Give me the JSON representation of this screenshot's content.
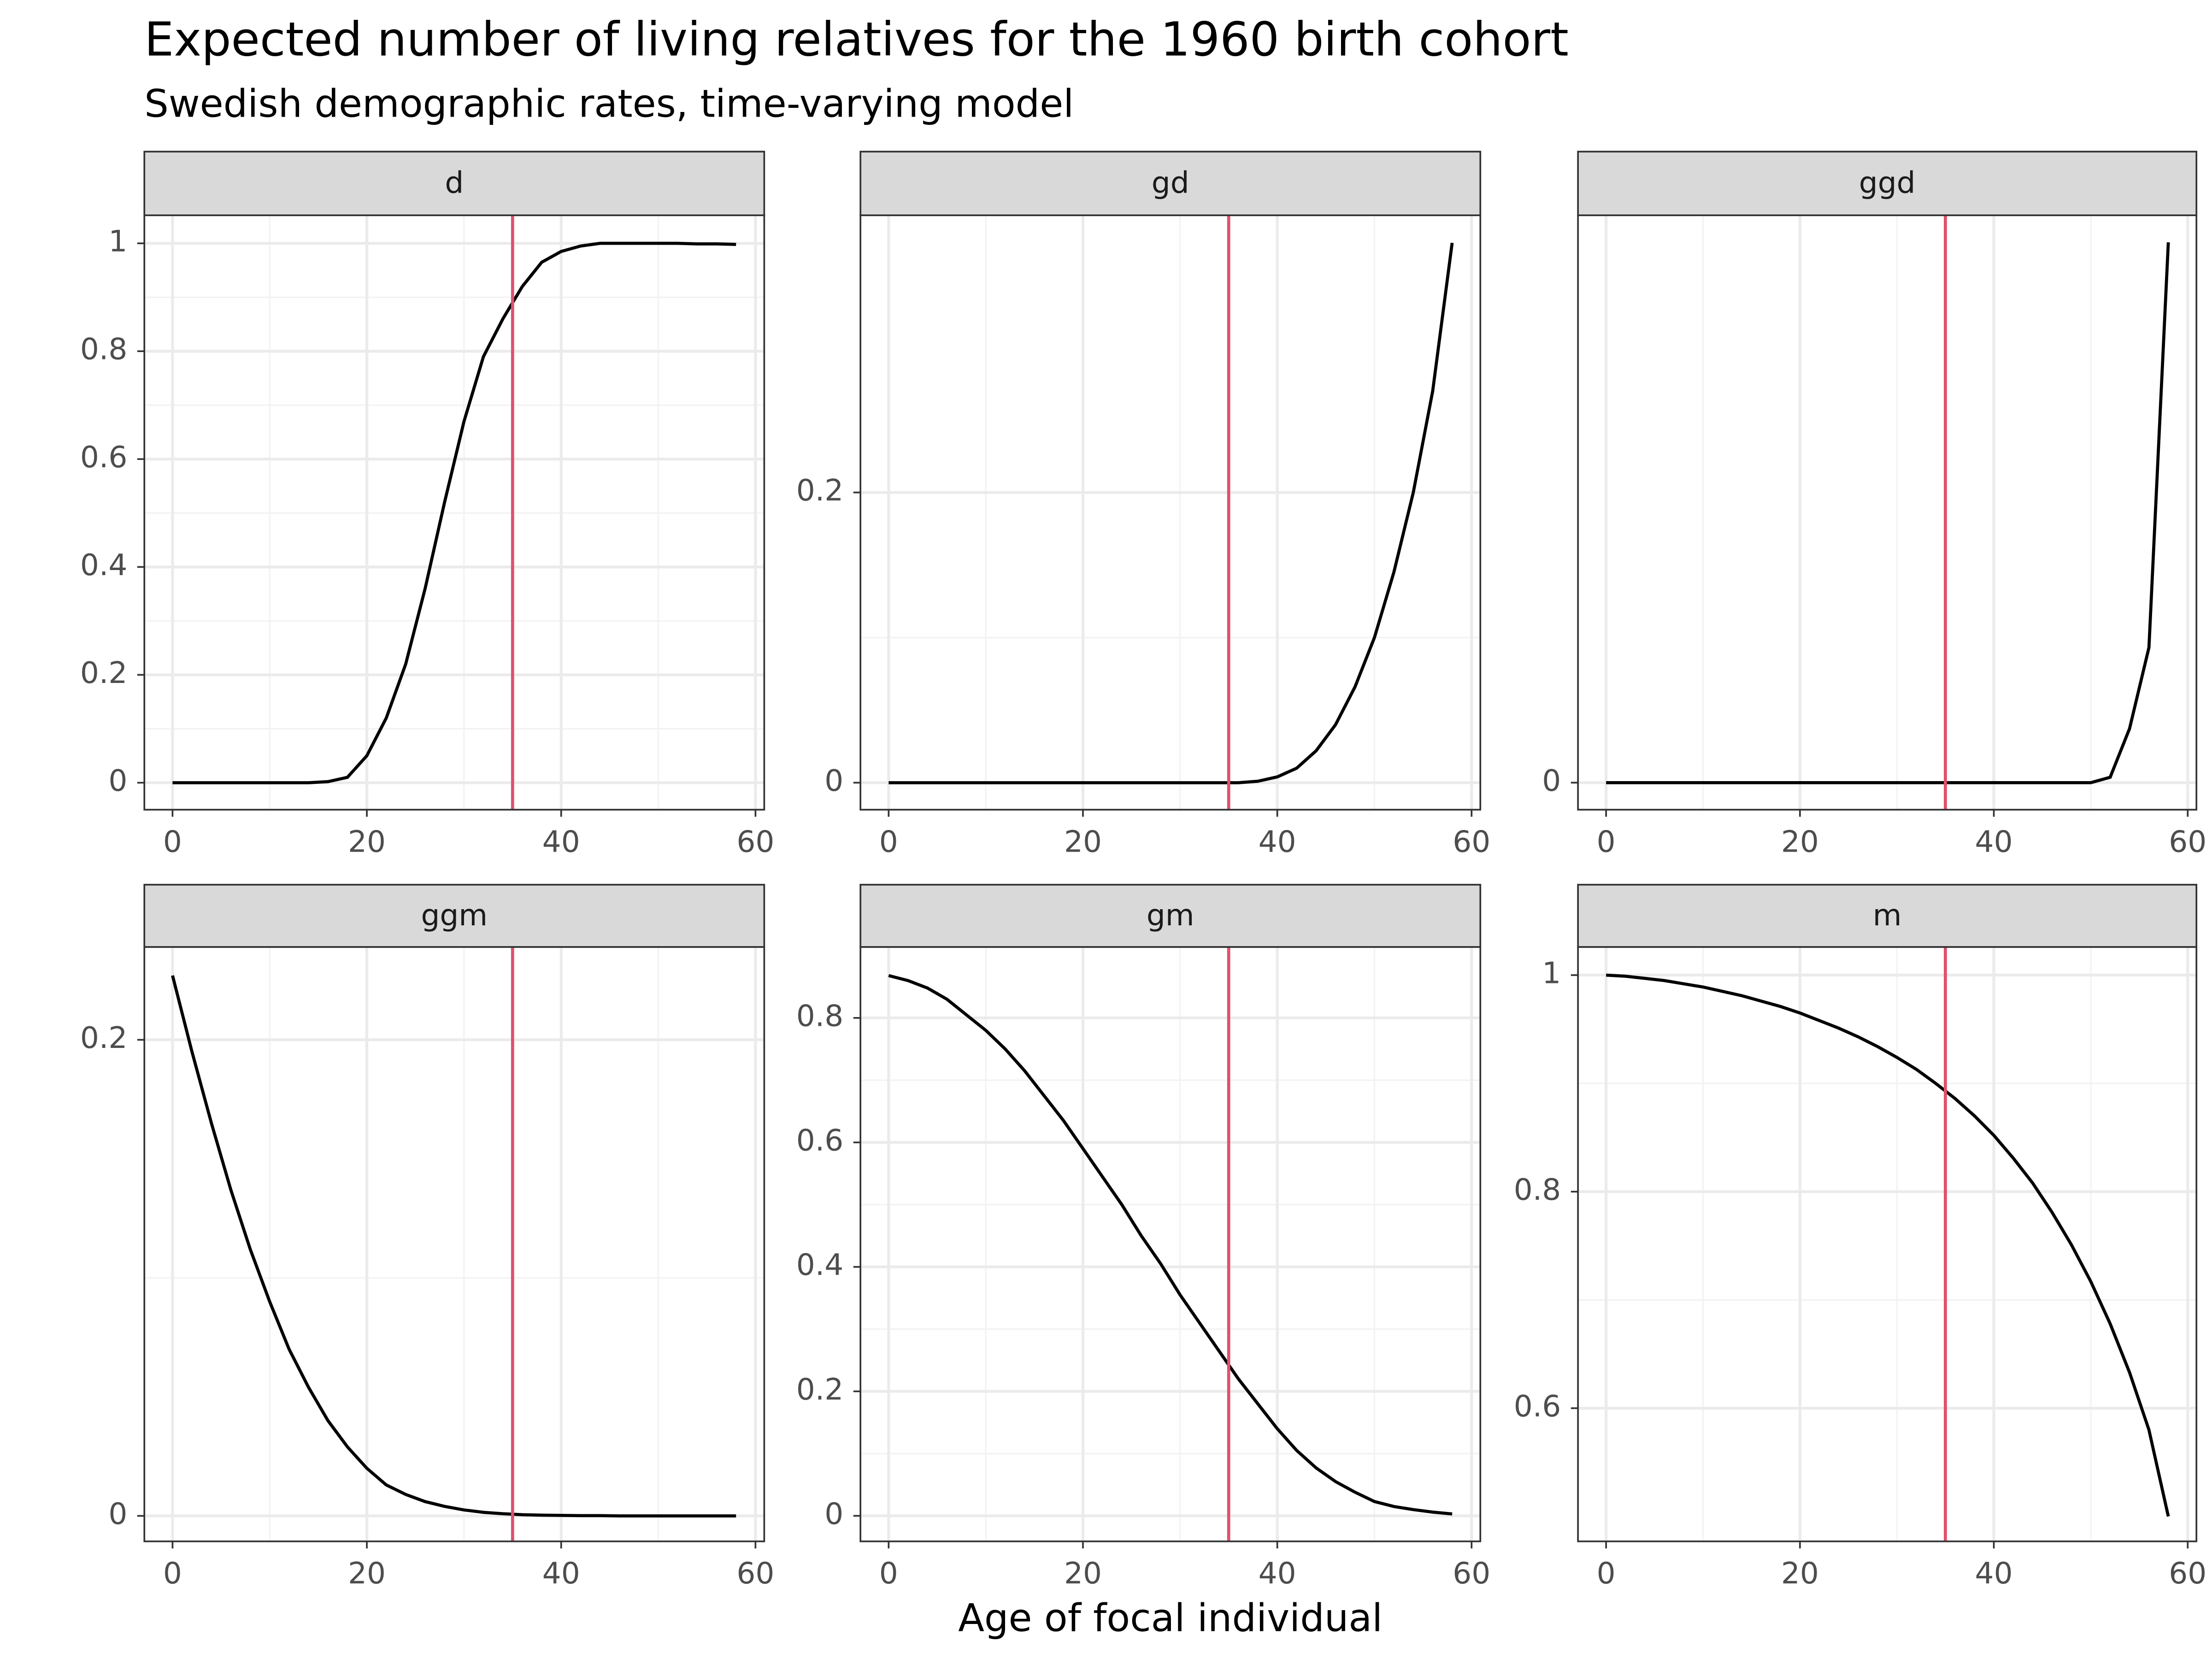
{
  "title": "Expected number of living relatives for the 1960 birth cohort",
  "subtitle": "Swedish demographic rates, time-varying model",
  "x_label": "Age of focal individual",
  "chart_data": [
    {
      "type": "line",
      "strip": "d",
      "color": "#000000",
      "vline": 35,
      "vline_color": "#e0506e",
      "grid": true,
      "x": [
        0,
        2,
        4,
        6,
        8,
        10,
        12,
        14,
        16,
        18,
        20,
        22,
        24,
        26,
        28,
        30,
        32,
        34,
        36,
        38,
        40,
        42,
        44,
        46,
        48,
        50,
        52,
        54,
        56,
        58
      ],
      "values": [
        0,
        0,
        0,
        0,
        0,
        0,
        0,
        0,
        0.002,
        0.01,
        0.05,
        0.12,
        0.22,
        0.36,
        0.52,
        0.67,
        0.79,
        0.86,
        0.92,
        0.965,
        0.985,
        0.995,
        1,
        1,
        1,
        1,
        1,
        0.999,
        0.999,
        0.998
      ],
      "xlim": [
        -2.9,
        60.9
      ],
      "ylim": [
        -0.05,
        1.052
      ],
      "xticks": [
        0,
        20,
        40,
        60
      ],
      "yticks": [
        0,
        0.2,
        0.4,
        0.6,
        0.8,
        1
      ]
    },
    {
      "type": "line",
      "strip": "gd",
      "color": "#000000",
      "vline": 35,
      "vline_color": "#e0506e",
      "grid": true,
      "x": [
        0,
        2,
        4,
        6,
        8,
        10,
        12,
        14,
        16,
        18,
        20,
        22,
        24,
        26,
        28,
        30,
        32,
        34,
        36,
        38,
        40,
        42,
        44,
        46,
        48,
        50,
        52,
        54,
        56,
        58
      ],
      "values": [
        0,
        0,
        0,
        0,
        0,
        0,
        0,
        0,
        0,
        0,
        0,
        0,
        0,
        0,
        0,
        0,
        0,
        0,
        0,
        0.001,
        0.004,
        0.01,
        0.022,
        0.04,
        0.066,
        0.1,
        0.145,
        0.2,
        0.27,
        0.372
      ],
      "xlim": [
        -2.9,
        60.9
      ],
      "ylim": [
        -0.0186,
        0.391
      ],
      "xticks": [
        0,
        20,
        40,
        60
      ],
      "yticks": [
        0,
        0.2
      ]
    },
    {
      "type": "line",
      "strip": "ggd",
      "color": "#000000",
      "vline": 35,
      "vline_color": "#e0506e",
      "grid": true,
      "x": [
        0,
        2,
        4,
        6,
        8,
        10,
        12,
        14,
        16,
        18,
        20,
        22,
        24,
        26,
        28,
        30,
        32,
        34,
        36,
        38,
        40,
        42,
        44,
        46,
        48,
        50,
        52,
        54,
        56,
        58
      ],
      "values": [
        0,
        0,
        0,
        0,
        0,
        0,
        0,
        0,
        0,
        0,
        0,
        0,
        0,
        0,
        0,
        0,
        0,
        0,
        0,
        0,
        0,
        0,
        0,
        0,
        0,
        0,
        2e-05,
        0.0002,
        0.0005,
        0.002
      ],
      "xlim": [
        -2.9,
        60.9
      ],
      "ylim": [
        -0.0001,
        0.0021
      ],
      "xticks": [
        0,
        20,
        40,
        60
      ],
      "yticks": [
        0
      ]
    },
    {
      "type": "line",
      "strip": "ggm",
      "color": "#000000",
      "vline": 35,
      "vline_color": "#e0506e",
      "grid": true,
      "x": [
        0,
        2,
        4,
        6,
        8,
        10,
        12,
        14,
        16,
        18,
        20,
        22,
        24,
        26,
        28,
        30,
        32,
        34,
        36,
        38,
        40,
        42,
        44,
        46,
        48,
        50,
        52,
        54,
        56,
        58
      ],
      "values": [
        0.227,
        0.195,
        0.165,
        0.137,
        0.112,
        0.09,
        0.07,
        0.054,
        0.04,
        0.029,
        0.02,
        0.013,
        0.009,
        0.006,
        0.004,
        0.0025,
        0.0015,
        0.0009,
        0.0005,
        0.0003,
        0.0002,
        0.0001,
        0.0001,
        0,
        0,
        0,
        0,
        0,
        0,
        0
      ],
      "xlim": [
        -2.9,
        60.9
      ],
      "ylim": [
        -0.0107,
        0.239
      ],
      "xticks": [
        0,
        20,
        40,
        60
      ],
      "yticks": [
        0,
        0.2
      ]
    },
    {
      "type": "line",
      "strip": "gm",
      "color": "#000000",
      "vline": 35,
      "vline_color": "#e0506e",
      "grid": true,
      "x": [
        0,
        2,
        4,
        6,
        8,
        10,
        12,
        14,
        16,
        18,
        20,
        22,
        24,
        26,
        28,
        30,
        32,
        34,
        36,
        38,
        40,
        42,
        44,
        46,
        48,
        50,
        52,
        54,
        56,
        58
      ],
      "values": [
        0.868,
        0.86,
        0.848,
        0.83,
        0.805,
        0.78,
        0.75,
        0.715,
        0.675,
        0.635,
        0.59,
        0.545,
        0.5,
        0.45,
        0.405,
        0.355,
        0.31,
        0.265,
        0.22,
        0.18,
        0.14,
        0.105,
        0.077,
        0.055,
        0.038,
        0.023,
        0.015,
        0.01,
        0.006,
        0.003
      ],
      "xlim": [
        -2.9,
        60.9
      ],
      "ylim": [
        -0.041,
        0.914
      ],
      "xticks": [
        0,
        20,
        40,
        60
      ],
      "yticks": [
        0,
        0.2,
        0.4,
        0.6,
        0.8
      ]
    },
    {
      "type": "line",
      "strip": "m",
      "color": "#000000",
      "vline": 35,
      "vline_color": "#e0506e",
      "grid": true,
      "x": [
        0,
        2,
        4,
        6,
        8,
        10,
        12,
        14,
        16,
        18,
        20,
        22,
        24,
        26,
        28,
        30,
        32,
        34,
        36,
        38,
        40,
        42,
        44,
        46,
        48,
        50,
        52,
        54,
        56,
        58
      ],
      "values": [
        1,
        0.999,
        0.997,
        0.995,
        0.992,
        0.989,
        0.985,
        0.981,
        0.976,
        0.971,
        0.965,
        0.958,
        0.951,
        0.943,
        0.934,
        0.924,
        0.913,
        0.9,
        0.886,
        0.87,
        0.852,
        0.831,
        0.808,
        0.781,
        0.751,
        0.717,
        0.678,
        0.633,
        0.58,
        0.5
      ],
      "xlim": [
        -2.9,
        60.9
      ],
      "ylim": [
        0.477,
        1.026
      ],
      "xticks": [
        0,
        20,
        40,
        60
      ],
      "yticks": [
        0.6,
        0.8,
        1
      ]
    }
  ]
}
